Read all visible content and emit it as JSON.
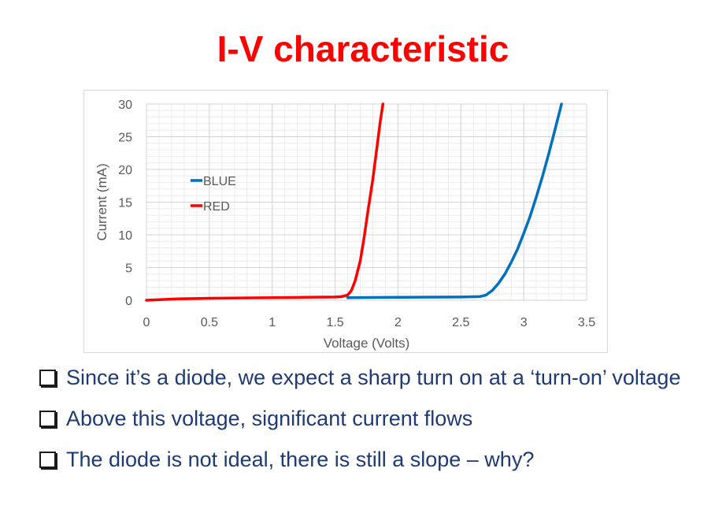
{
  "slide": {
    "title": "I-V characteristic"
  },
  "bullets": [
    {
      "text": "Since it’s a diode, we expect a sharp turn on at a ‘turn-on’ voltage",
      "icon": "checkbox-icon"
    },
    {
      "text": "Above this voltage, significant current flows",
      "icon": "checkbox-icon"
    },
    {
      "text": "The diode is not ideal, there is still a slope – why?",
      "icon": "checkbox-icon"
    }
  ],
  "chart_data": {
    "type": "line",
    "title": "",
    "xlabel": "Voltage (Volts)",
    "ylabel": "Current (mA)",
    "xlim": [
      0,
      3.5
    ],
    "ylim": [
      0,
      30
    ],
    "xticks": [
      "0",
      "0.5",
      "1",
      "1.5",
      "2",
      "2.5",
      "3",
      "3.5"
    ],
    "yticks": [
      "0",
      "5",
      "10",
      "15",
      "20",
      "25",
      "30"
    ],
    "grid": true,
    "legend_position": "upper-left",
    "series": [
      {
        "name": "BLUE",
        "color": "#0070c0",
        "x": [
          1.6,
          2.0,
          2.5,
          2.65,
          2.7,
          2.75,
          2.8,
          2.85,
          2.9,
          2.95,
          3.0,
          3.05,
          3.1,
          3.15,
          3.2,
          3.25,
          3.3
        ],
        "y": [
          0.4,
          0.45,
          0.5,
          0.55,
          0.8,
          1.5,
          2.6,
          4.0,
          5.8,
          7.8,
          10.2,
          12.8,
          15.8,
          19.0,
          22.5,
          26.2,
          30.0
        ]
      },
      {
        "name": "RED",
        "color": "#ff0000",
        "x": [
          0,
          0.25,
          0.5,
          0.75,
          1.0,
          1.25,
          1.5,
          1.55,
          1.6,
          1.63,
          1.66,
          1.7,
          1.73,
          1.76,
          1.8,
          1.83,
          1.86,
          1.88
        ],
        "y": [
          0.0,
          0.2,
          0.3,
          0.35,
          0.4,
          0.45,
          0.5,
          0.55,
          0.8,
          1.5,
          3.0,
          6.0,
          9.5,
          13.5,
          18.5,
          23.0,
          27.5,
          30.0
        ]
      }
    ]
  }
}
